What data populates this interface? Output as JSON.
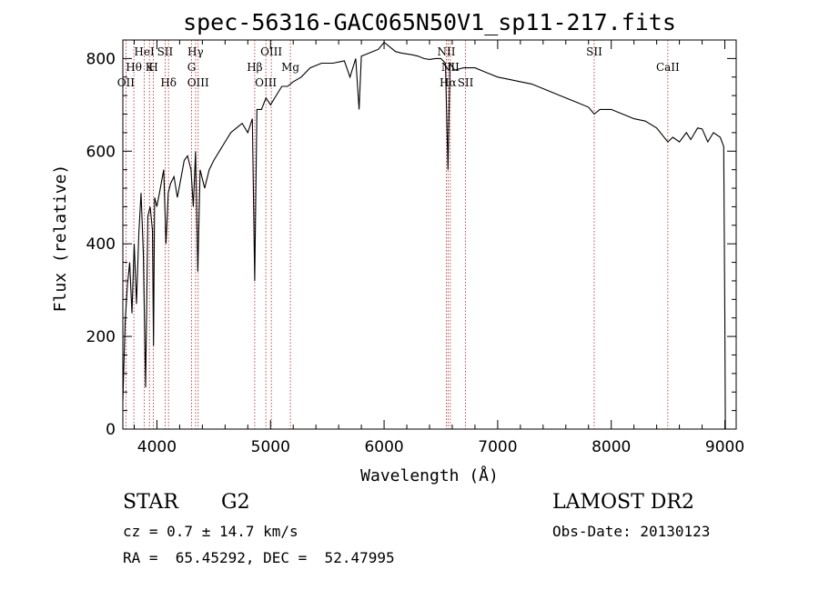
{
  "chart_data": {
    "type": "line",
    "title": "spec-56316-GAC065N50V1_sp11-217.fits",
    "xlabel": "Wavelength (Å)",
    "ylabel": "Flux (relative)",
    "xlim": [
      3700,
      9100
    ],
    "ylim": [
      0,
      840
    ],
    "x_ticks": [
      4000,
      5000,
      6000,
      7000,
      8000,
      9000
    ],
    "y_ticks": [
      0,
      200,
      400,
      600,
      800
    ],
    "grid": false,
    "series": [
      {
        "x": [
          3700,
          3720,
          3740,
          3760,
          3780,
          3800,
          3820,
          3840,
          3860,
          3880,
          3900,
          3920,
          3940,
          3960,
          3970,
          3980,
          4000,
          4030,
          4060,
          4080,
          4100,
          4120,
          4150,
          4180,
          4210,
          4240,
          4270,
          4300,
          4320,
          4340,
          4360,
          4380,
          4420,
          4460,
          4500,
          4550,
          4600,
          4650,
          4700,
          4750,
          4800,
          4840,
          4861,
          4880,
          4920,
          4960,
          5000,
          5050,
          5100,
          5150,
          5200,
          5270,
          5350,
          5450,
          5550,
          5650,
          5700,
          5750,
          5780,
          5800,
          5850,
          5900,
          5950,
          6000,
          6050,
          6100,
          6150,
          6200,
          6250,
          6300,
          6350,
          6400,
          6450,
          6500,
          6540,
          6563,
          6580,
          6620,
          6700,
          6800,
          6900,
          7000,
          7100,
          7200,
          7300,
          7400,
          7500,
          7600,
          7700,
          7800,
          7850,
          7900,
          8000,
          8100,
          8200,
          8300,
          8400,
          8498,
          8542,
          8600,
          8662,
          8700,
          8760,
          8800,
          8850,
          8900,
          8960,
          8990,
          9000,
          9005
        ],
        "y": [
          60,
          230,
          310,
          360,
          250,
          400,
          270,
          420,
          510,
          380,
          90,
          460,
          480,
          430,
          180,
          500,
          480,
          520,
          560,
          400,
          510,
          530,
          545,
          500,
          540,
          580,
          590,
          560,
          480,
          600,
          340,
          560,
          520,
          560,
          580,
          600,
          620,
          640,
          650,
          660,
          640,
          670,
          320,
          690,
          690,
          715,
          700,
          720,
          740,
          740,
          750,
          760,
          780,
          790,
          790,
          795,
          760,
          800,
          690,
          805,
          810,
          815,
          820,
          835,
          825,
          815,
          812,
          810,
          808,
          805,
          800,
          798,
          800,
          800,
          790,
          560,
          790,
          775,
          780,
          780,
          770,
          760,
          755,
          750,
          745,
          735,
          725,
          715,
          705,
          695,
          680,
          690,
          690,
          680,
          670,
          665,
          650,
          620,
          630,
          620,
          640,
          625,
          650,
          648,
          620,
          640,
          630,
          610,
          250,
          0
        ]
      }
    ],
    "annotations": [
      {
        "label": "OII",
        "x": 3727,
        "row": "bottom"
      },
      {
        "label": "Hθ",
        "x": 3797,
        "row": "middle"
      },
      {
        "label": "HeI",
        "x": 3889,
        "row": "top"
      },
      {
        "label": "K",
        "x": 3934,
        "row": "middle-low"
      },
      {
        "label": "H",
        "x": 3969,
        "row": "middle"
      },
      {
        "label": "SII",
        "x": 4072,
        "row": "top"
      },
      {
        "label": "Hδ",
        "x": 4102,
        "row": "bottom"
      },
      {
        "label": "Hγ",
        "x": 4340,
        "row": "top"
      },
      {
        "label": "G",
        "x": 4305,
        "row": "middle"
      },
      {
        "label": "OIII",
        "x": 4363,
        "row": "bottom"
      },
      {
        "label": "Hβ",
        "x": 4861,
        "row": "middle"
      },
      {
        "label": "OIII",
        "x": 4959,
        "row": "bottom"
      },
      {
        "label": "OIII",
        "x": 5007,
        "row": "top"
      },
      {
        "label": "Mg",
        "x": 5175,
        "row": "middle"
      },
      {
        "label": "NII",
        "x": 6548,
        "row": "top"
      },
      {
        "label": "NII",
        "x": 6583,
        "row": "middle"
      },
      {
        "label": "Hα",
        "x": 6563,
        "row": "bottom"
      },
      {
        "label": "SII",
        "x": 6717,
        "row": "bottom"
      },
      {
        "label": "SII",
        "x": 7850,
        "row": "top"
      },
      {
        "label": "CaII",
        "x": 8498,
        "row": "middle"
      }
    ],
    "line_color": "#000000",
    "marker_color": "#b22222"
  },
  "info": {
    "object_class": "STAR",
    "subclass": "G2",
    "survey": "LAMOST DR2",
    "redshift_text": "cz = 0.7 ± 14.7 km/s",
    "obs_date": "Obs-Date: 20130123",
    "coords": "RA =  65.45292, DEC =  52.47995"
  }
}
